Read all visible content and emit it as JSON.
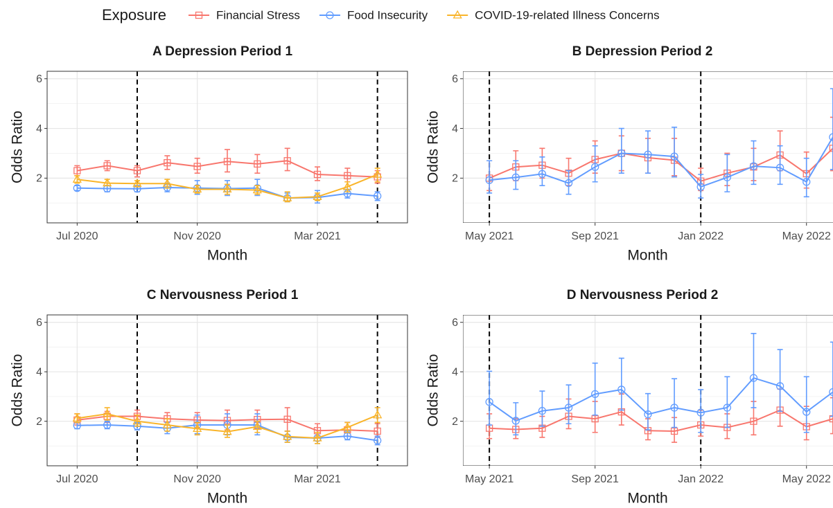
{
  "legend": {
    "title": "Exposure"
  },
  "chart_data": [
    {
      "type": "line",
      "title": "A Depression Period 1",
      "xlabel": "Month",
      "ylabel": "Odds Ratio",
      "x": [
        "2020-07",
        "2020-08",
        "2020-09",
        "2020-10",
        "2020-11",
        "2020-12",
        "2021-01",
        "2021-02",
        "2021-03",
        "2021-04",
        "2021-05"
      ],
      "xlim": [
        "2020-06",
        "2021-06"
      ],
      "xticks": [
        {
          "value": "2020-07",
          "label": "Jul 2020"
        },
        {
          "value": "2020-11",
          "label": "Nov 2020"
        },
        {
          "value": "2021-03",
          "label": "Mar 2021"
        }
      ],
      "ylim": [
        0.2,
        6.3
      ],
      "yticks": [
        2,
        4,
        6
      ],
      "minor_yticks": [
        1,
        3,
        5
      ],
      "vlines": [
        "2020-09",
        "2021-05"
      ],
      "series": [
        {
          "name": "Financial Stress",
          "color": "#F8766D",
          "marker": "square",
          "values": [
            2.3,
            2.5,
            2.3,
            2.62,
            2.47,
            2.67,
            2.57,
            2.7,
            2.15,
            2.1,
            2.05
          ],
          "lower": [
            2.1,
            2.3,
            2.05,
            2.35,
            2.2,
            2.25,
            2.2,
            2.3,
            1.9,
            1.85,
            1.8
          ],
          "upper": [
            2.5,
            2.7,
            2.5,
            2.9,
            2.8,
            3.15,
            2.95,
            3.2,
            2.45,
            2.4,
            2.3
          ]
        },
        {
          "name": "Food Insecurity",
          "color": "#619CFF",
          "marker": "circle",
          "values": [
            1.6,
            1.58,
            1.57,
            1.62,
            1.6,
            1.58,
            1.6,
            1.2,
            1.22,
            1.38,
            1.28
          ],
          "lower": [
            1.5,
            1.45,
            1.45,
            1.45,
            1.35,
            1.3,
            1.3,
            1.05,
            1.0,
            1.2,
            1.1
          ],
          "upper": [
            1.7,
            1.7,
            1.7,
            1.8,
            1.9,
            1.9,
            1.95,
            1.4,
            1.5,
            1.55,
            1.45
          ]
        },
        {
          "name": "COVID-19-related Illness Concerns",
          "color": "#F9B429",
          "marker": "triangle",
          "values": [
            1.95,
            1.8,
            1.78,
            1.78,
            1.55,
            1.55,
            1.52,
            1.2,
            1.25,
            1.65,
            2.15
          ],
          "lower": [
            1.8,
            1.7,
            1.65,
            1.6,
            1.4,
            1.35,
            1.35,
            1.05,
            1.1,
            1.45,
            1.85
          ],
          "upper": [
            2.1,
            1.95,
            1.9,
            1.95,
            1.7,
            1.75,
            1.7,
            1.45,
            1.4,
            1.85,
            2.4
          ]
        }
      ]
    },
    {
      "type": "line",
      "title": "B Depression Period 2",
      "xlabel": "Month",
      "ylabel": "Odds Ratio",
      "x": [
        "2021-05",
        "2021-06",
        "2021-07",
        "2021-08",
        "2021-09",
        "2021-10",
        "2021-11",
        "2021-12",
        "2022-01",
        "2022-02",
        "2022-03",
        "2022-04",
        "2022-05",
        "2022-06"
      ],
      "xlim": [
        "2021-04",
        "2022-07"
      ],
      "xticks": [
        {
          "value": "2021-05",
          "label": "May 2021"
        },
        {
          "value": "2021-09",
          "label": "Sep 2021"
        },
        {
          "value": "2022-01",
          "label": "Jan 2022"
        },
        {
          "value": "2022-05",
          "label": "May 2022"
        }
      ],
      "ylim": [
        0.2,
        6.3
      ],
      "yticks": [
        2,
        4,
        6
      ],
      "minor_yticks": [
        1,
        3,
        5
      ],
      "vlines": [
        "2021-05",
        "2022-01"
      ],
      "series": [
        {
          "name": "Financial Stress",
          "color": "#F8766D",
          "marker": "square",
          "values": [
            2.0,
            2.45,
            2.52,
            2.2,
            2.75,
            3.0,
            2.82,
            2.72,
            1.88,
            2.2,
            2.45,
            2.93,
            2.18,
            3.2
          ],
          "lower": [
            1.5,
            1.9,
            2.0,
            1.7,
            2.2,
            2.3,
            2.2,
            2.1,
            1.5,
            1.7,
            1.9,
            2.3,
            1.6,
            2.3
          ],
          "upper": [
            2.7,
            3.1,
            3.2,
            2.8,
            3.5,
            3.7,
            3.6,
            3.6,
            2.4,
            3.0,
            3.2,
            3.9,
            3.05,
            4.45
          ]
        },
        {
          "name": "Food Insecurity",
          "color": "#619CFF",
          "marker": "circle",
          "values": [
            1.92,
            2.03,
            2.17,
            1.8,
            2.45,
            3.0,
            2.95,
            2.87,
            1.65,
            2.03,
            2.48,
            2.42,
            1.85,
            3.65
          ],
          "lower": [
            1.4,
            1.55,
            1.7,
            1.35,
            1.85,
            2.2,
            2.2,
            2.05,
            1.2,
            1.45,
            1.75,
            1.75,
            1.25,
            2.35
          ],
          "upper": [
            2.7,
            2.7,
            2.85,
            2.3,
            3.3,
            4.0,
            3.9,
            4.05,
            2.15,
            2.95,
            3.5,
            3.3,
            2.8,
            5.6
          ]
        }
      ]
    },
    {
      "type": "line",
      "title": "C Nervousness Period 1",
      "xlabel": "Month",
      "ylabel": "Odds Ratio",
      "x": [
        "2020-07",
        "2020-08",
        "2020-09",
        "2020-10",
        "2020-11",
        "2020-12",
        "2021-01",
        "2021-02",
        "2021-03",
        "2021-04",
        "2021-05"
      ],
      "xlim": [
        "2020-06",
        "2021-06"
      ],
      "xticks": [
        {
          "value": "2020-07",
          "label": "Jul 2020"
        },
        {
          "value": "2020-11",
          "label": "Nov 2020"
        },
        {
          "value": "2021-03",
          "label": "Mar 2021"
        }
      ],
      "ylim": [
        0.2,
        6.3
      ],
      "yticks": [
        2,
        4,
        6
      ],
      "minor_yticks": [
        1,
        3,
        5
      ],
      "vlines": [
        "2020-09",
        "2021-05"
      ],
      "series": [
        {
          "name": "Financial Stress",
          "color": "#F8766D",
          "marker": "square",
          "values": [
            2.05,
            2.2,
            2.2,
            2.1,
            2.05,
            2.03,
            2.07,
            2.08,
            1.62,
            1.65,
            1.6
          ],
          "lower": [
            1.85,
            1.95,
            1.95,
            1.85,
            1.75,
            1.65,
            1.7,
            1.6,
            1.35,
            1.4,
            1.35
          ],
          "upper": [
            2.3,
            2.4,
            2.45,
            2.35,
            2.35,
            2.45,
            2.45,
            2.55,
            1.9,
            1.95,
            1.9
          ]
        },
        {
          "name": "Food Insecurity",
          "color": "#619CFF",
          "marker": "circle",
          "values": [
            1.83,
            1.85,
            1.8,
            1.72,
            1.85,
            1.85,
            1.85,
            1.35,
            1.32,
            1.4,
            1.22
          ],
          "lower": [
            1.7,
            1.7,
            1.65,
            1.5,
            1.5,
            1.45,
            1.45,
            1.15,
            1.1,
            1.25,
            1.05
          ],
          "upper": [
            1.95,
            2.0,
            1.95,
            1.95,
            2.25,
            2.3,
            2.3,
            1.6,
            1.55,
            1.6,
            1.4
          ]
        },
        {
          "name": "COVID-19-related Illness Concerns",
          "color": "#F9B429",
          "marker": "triangle",
          "values": [
            2.12,
            2.3,
            2.0,
            1.85,
            1.7,
            1.58,
            1.78,
            1.38,
            1.32,
            1.75,
            2.25
          ],
          "lower": [
            1.95,
            2.05,
            1.8,
            1.6,
            1.45,
            1.35,
            1.55,
            1.15,
            1.1,
            1.55,
            1.95
          ],
          "upper": [
            2.3,
            2.55,
            2.25,
            2.1,
            1.95,
            1.85,
            2.0,
            1.6,
            1.55,
            1.95,
            2.55
          ]
        }
      ]
    },
    {
      "type": "line",
      "title": "D Nervousness Period 2",
      "xlabel": "Month",
      "ylabel": "Odds Ratio",
      "x": [
        "2021-05",
        "2021-06",
        "2021-07",
        "2021-08",
        "2021-09",
        "2021-10",
        "2021-11",
        "2021-12",
        "2022-01",
        "2022-02",
        "2022-03",
        "2022-04",
        "2022-05",
        "2022-06"
      ],
      "xlim": [
        "2021-04",
        "2022-07"
      ],
      "xticks": [
        {
          "value": "2021-05",
          "label": "May 2021"
        },
        {
          "value": "2021-09",
          "label": "Sep 2021"
        },
        {
          "value": "2022-01",
          "label": "Jan 2022"
        },
        {
          "value": "2022-05",
          "label": "May 2022"
        }
      ],
      "ylim": [
        0.2,
        6.3
      ],
      "yticks": [
        2,
        4,
        6
      ],
      "minor_yticks": [
        1,
        3,
        5
      ],
      "vlines": [
        "2021-05",
        "2022-01"
      ],
      "series": [
        {
          "name": "Financial Stress",
          "color": "#F8766D",
          "marker": "square",
          "values": [
            1.72,
            1.67,
            1.72,
            2.2,
            2.1,
            2.38,
            1.62,
            1.6,
            1.85,
            1.75,
            2.0,
            2.45,
            1.78,
            2.1
          ],
          "lower": [
            1.3,
            1.3,
            1.35,
            1.7,
            1.55,
            1.85,
            1.25,
            1.15,
            1.4,
            1.3,
            1.45,
            1.8,
            1.25,
            1.5
          ],
          "upper": [
            2.3,
            2.1,
            2.2,
            2.9,
            2.8,
            3.1,
            2.1,
            2.15,
            2.45,
            2.3,
            2.8,
            3.3,
            2.6,
            2.95
          ]
        },
        {
          "name": "Food Insecurity",
          "color": "#619CFF",
          "marker": "circle",
          "values": [
            2.78,
            2.02,
            2.42,
            2.55,
            3.1,
            3.28,
            2.28,
            2.55,
            2.35,
            2.55,
            3.75,
            3.42,
            2.38,
            3.18
          ],
          "lower": [
            1.85,
            1.45,
            1.8,
            1.9,
            2.25,
            2.45,
            1.65,
            1.75,
            1.55,
            1.75,
            2.55,
            2.4,
            1.55,
            2.2
          ],
          "upper": [
            4.02,
            2.75,
            3.22,
            3.47,
            4.35,
            4.55,
            3.12,
            3.72,
            3.28,
            3.8,
            5.55,
            4.9,
            3.8,
            5.2
          ]
        }
      ]
    }
  ]
}
